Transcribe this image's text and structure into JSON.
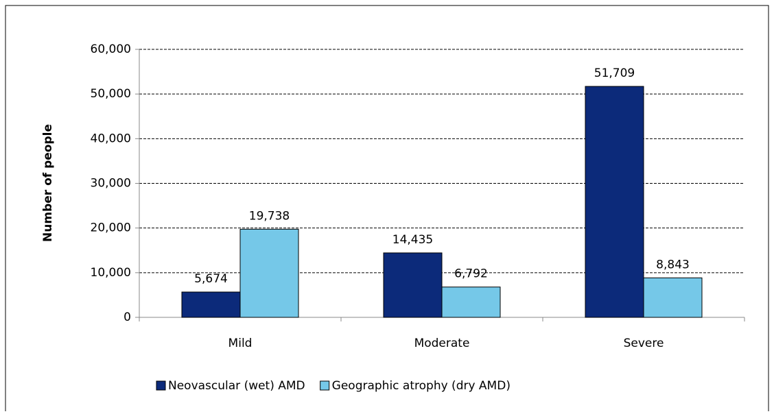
{
  "chart_data": {
    "type": "bar",
    "y_label": "Number of people",
    "categories": [
      "Mild",
      "Moderate",
      "Severe"
    ],
    "series": [
      {
        "name": "Neovascular (wet) AMD",
        "color": "#0c2a7a",
        "values": [
          5674,
          14435,
          51709
        ],
        "value_labels": [
          "5,674",
          "14,435",
          "51,709"
        ]
      },
      {
        "name": "Geographic atrophy (dry AMD)",
        "color": "#75c8e8",
        "values": [
          19738,
          6792,
          8843
        ],
        "value_labels": [
          "19,738",
          "6,792",
          "8,843"
        ]
      }
    ],
    "ylim": [
      0,
      60000
    ],
    "yticks": [
      0,
      {
        "value": 10000,
        "label": "10,000"
      },
      {
        "value": 20000,
        "label": "20,000"
      },
      {
        "value": 30000,
        "label": "30,000"
      },
      {
        "value": 40000,
        "label": "40,000"
      },
      {
        "value": 50000,
        "label": "50,000"
      },
      {
        "value": 60000,
        "label": "60,000"
      }
    ],
    "grid": true
  }
}
